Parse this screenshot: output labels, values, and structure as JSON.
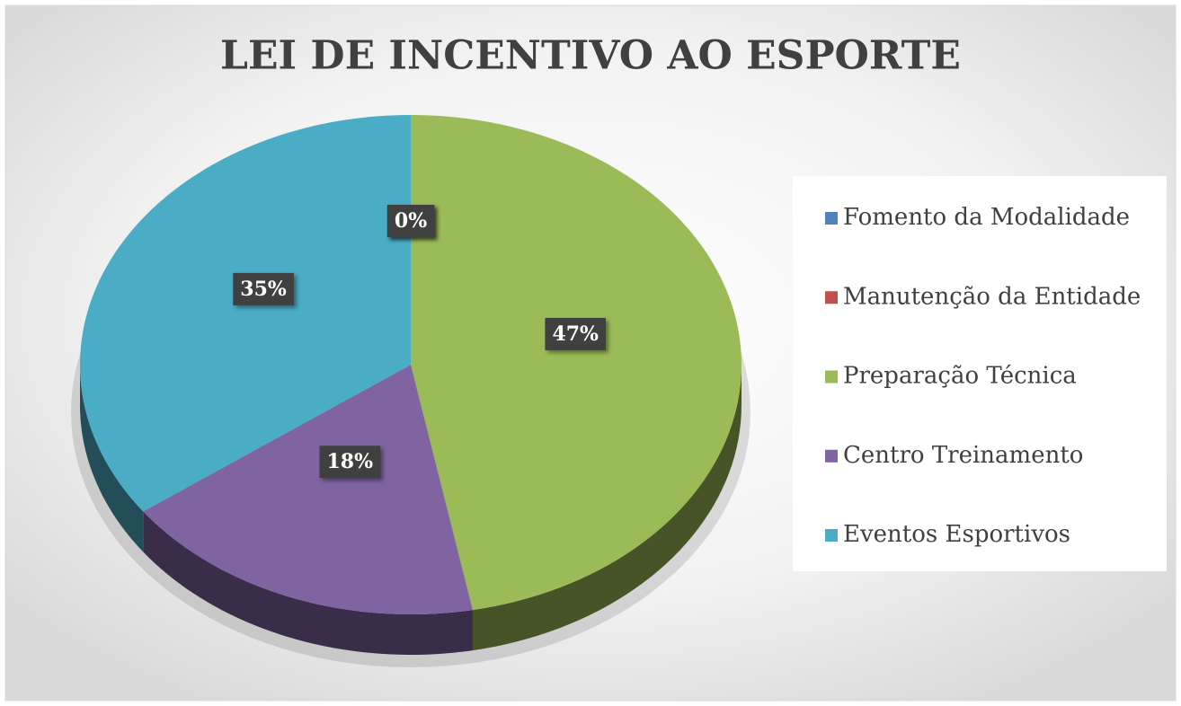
{
  "chart_data": {
    "type": "pie",
    "title": "LEI DE INCENTIVO AO ESPORTE",
    "categories": [
      "Fomento da Modalidade",
      "Manutenção da Entidade",
      "Preparação Técnica",
      "Centro Treinamento",
      "Eventos Esportivos"
    ],
    "values": [
      0,
      0,
      47,
      18,
      35
    ],
    "value_labels": [
      "0%",
      "0%",
      "47%",
      "18%",
      "35%"
    ],
    "colors": [
      "#4f81bd",
      "#c0504d",
      "#9bbb59",
      "#8064a2",
      "#4bacc6"
    ],
    "legend": "right"
  }
}
